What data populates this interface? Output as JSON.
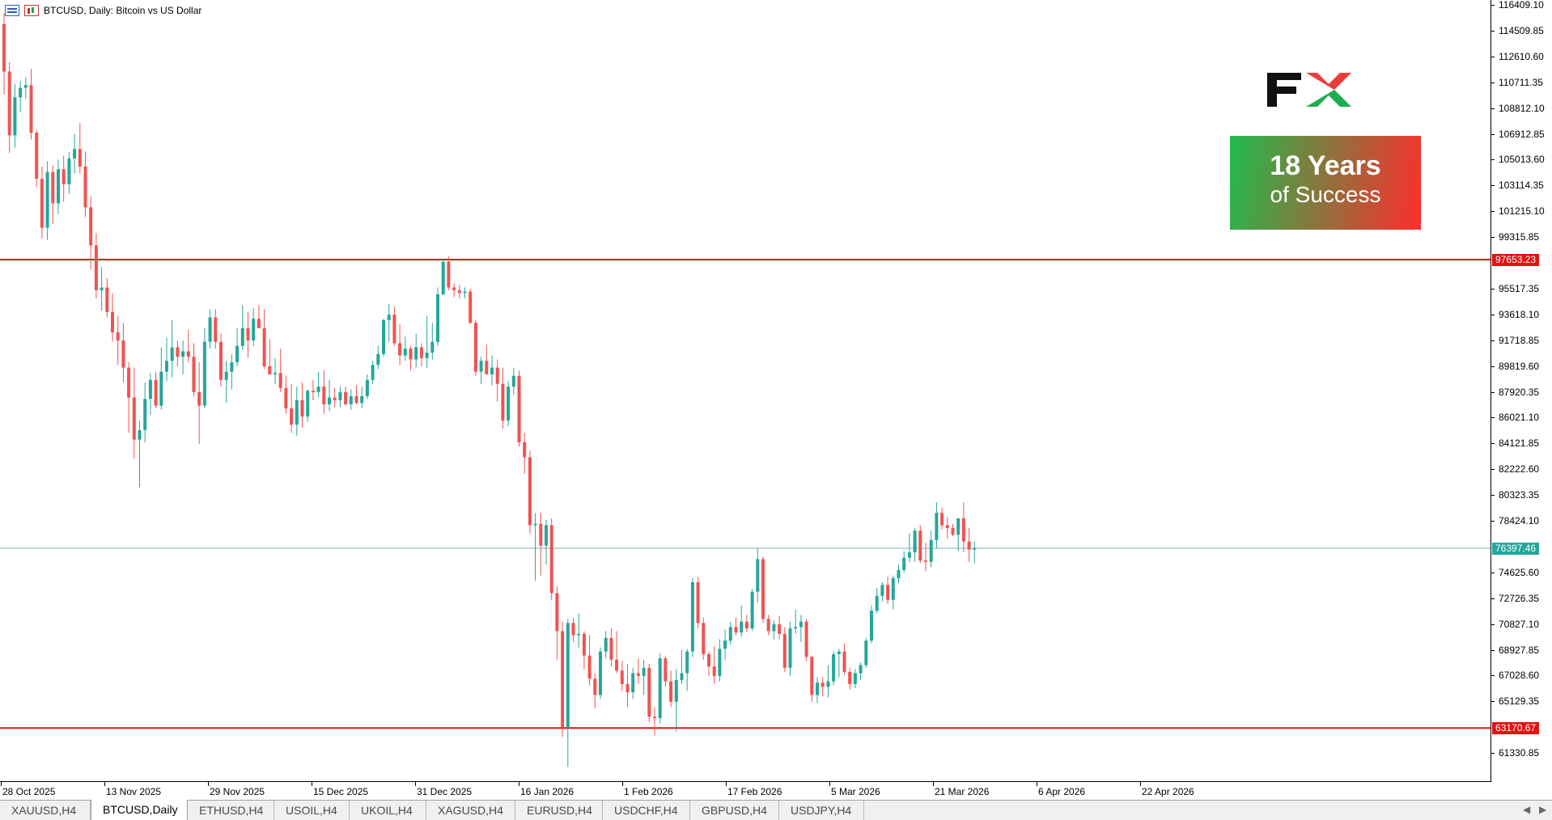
{
  "header": {
    "symbol_text": "BTCUSD, Daily:  Bitcoin vs US Dollar"
  },
  "colors": {
    "bull": "#26a69a",
    "bear": "#ef5350",
    "level_line": "#e01212",
    "current_line": "#7fb3b3",
    "current_label_bg": "#26a69a",
    "level_label_bg": "#e01212"
  },
  "price_axis": {
    "ticks": [
      "116409.10",
      "114509.85",
      "112610.60",
      "110711.35",
      "108812.10",
      "106912.85",
      "105013.60",
      "103114.35",
      "101215.10",
      "99315.85",
      "95517.35",
      "93618.10",
      "91718.85",
      "89819.60",
      "87920.35",
      "86021.10",
      "84121.85",
      "82222.60",
      "80323.35",
      "78424.10",
      "74625.60",
      "72726.35",
      "70827.10",
      "68927.85",
      "67028.60",
      "65129.35",
      "61330.85"
    ],
    "resistance_label": "97653.23",
    "current_label": "76397.46",
    "support_label": "63170.67"
  },
  "levels": {
    "resistance": 97653.23,
    "support": 63170.67,
    "current": 76397.46
  },
  "time_axis": {
    "ticks": [
      "28 Oct 2025",
      "13 Nov 2025",
      "29 Nov 2025",
      "15 Dec 2025",
      "31 Dec 2025",
      "16 Jan 2026",
      "1 Feb 2026",
      "17 Feb 2026",
      "5 Mar 2026",
      "21 Mar 2026",
      "6 Apr 2026",
      "22 Apr 2026"
    ]
  },
  "promo": {
    "logo_text": "FX",
    "line1": "18 Years",
    "line2": "of Success"
  },
  "tabs": [
    {
      "label": "XAUUSD,H4",
      "active": false
    },
    {
      "label": "BTCUSD,Daily",
      "active": true
    },
    {
      "label": "ETHUSD,H4",
      "active": false
    },
    {
      "label": "USOIL,H4",
      "active": false
    },
    {
      "label": "UKOIL,H4",
      "active": false
    },
    {
      "label": "XAGUSD,H4",
      "active": false
    },
    {
      "label": "EURUSD,H4",
      "active": false
    },
    {
      "label": "USDCHF,H4",
      "active": false
    },
    {
      "label": "GBPUSD,H4",
      "active": false
    },
    {
      "label": "USDJPY,H4",
      "active": false
    }
  ],
  "chart_data": {
    "type": "candlestick",
    "title": "BTCUSD, Daily:  Bitcoin vs US Dollar",
    "ylim": [
      59850,
      116409.1
    ],
    "x_start": "2025-10-28",
    "x_end": "2026-04-28",
    "candles": [
      [
        115000,
        115800,
        109800,
        111500
      ],
      [
        111500,
        112200,
        105500,
        106800
      ],
      [
        106800,
        110600,
        105900,
        109600
      ],
      [
        109600,
        110800,
        108500,
        110300
      ],
      [
        110300,
        111100,
        109500,
        110500
      ],
      [
        110500,
        111700,
        106500,
        107000
      ],
      [
        107000,
        107200,
        103000,
        103600
      ],
      [
        103600,
        104500,
        99200,
        100000
      ],
      [
        100000,
        104900,
        99100,
        104100
      ],
      [
        104100,
        104600,
        100300,
        101800
      ],
      [
        101800,
        105000,
        101000,
        104300
      ],
      [
        104300,
        105300,
        101900,
        103200
      ],
      [
        103200,
        105600,
        102500,
        105100
      ],
      [
        105100,
        106900,
        104000,
        105800
      ],
      [
        105800,
        107700,
        104000,
        104500
      ],
      [
        104500,
        105600,
        100800,
        101500
      ],
      [
        101500,
        102300,
        96900,
        98700
      ],
      [
        98700,
        99600,
        94800,
        95400
      ],
      [
        95400,
        97100,
        93900,
        95600
      ],
      [
        95600,
        96300,
        93400,
        93800
      ],
      [
        93800,
        95200,
        91600,
        92300
      ],
      [
        92300,
        93500,
        89900,
        91700
      ],
      [
        91700,
        93000,
        88600,
        89700
      ],
      [
        89700,
        90100,
        84900,
        87500
      ],
      [
        87500,
        89700,
        83000,
        84400
      ],
      [
        84400,
        85800,
        80900,
        85100
      ],
      [
        85100,
        88600,
        84200,
        87400
      ],
      [
        87400,
        89300,
        86200,
        88800
      ],
      [
        88800,
        89400,
        86700,
        86900
      ],
      [
        86900,
        91200,
        86600,
        89400
      ],
      [
        89400,
        91900,
        88700,
        90200
      ],
      [
        90200,
        93200,
        89000,
        91200
      ],
      [
        91200,
        91700,
        89800,
        90500
      ],
      [
        90500,
        91700,
        89200,
        90900
      ],
      [
        90900,
        92500,
        90100,
        90500
      ],
      [
        90500,
        91500,
        87600,
        87900
      ],
      [
        87900,
        90100,
        84100,
        86900
      ],
      [
        86900,
        92600,
        86700,
        91600
      ],
      [
        91600,
        94000,
        91100,
        93400
      ],
      [
        93400,
        94000,
        91100,
        91600
      ],
      [
        91600,
        92200,
        88300,
        88800
      ],
      [
        88800,
        90200,
        87100,
        89400
      ],
      [
        89400,
        90700,
        88100,
        90100
      ],
      [
        90100,
        92600,
        89800,
        91300
      ],
      [
        91300,
        94300,
        91000,
        92600
      ],
      [
        92600,
        93800,
        90400,
        91700
      ],
      [
        91700,
        94100,
        91300,
        93300
      ],
      [
        93300,
        94300,
        92800,
        92600
      ],
      [
        92600,
        94000,
        89600,
        89800
      ],
      [
        89800,
        91800,
        89200,
        89200
      ],
      [
        89200,
        90400,
        88500,
        89300
      ],
      [
        89300,
        91100,
        87900,
        88200
      ],
      [
        88200,
        89100,
        86300,
        86700
      ],
      [
        86700,
        88500,
        84900,
        85500
      ],
      [
        85500,
        88300,
        84700,
        87300
      ],
      [
        87300,
        88600,
        85300,
        86100
      ],
      [
        86100,
        88100,
        85700,
        88000
      ],
      [
        88000,
        88800,
        87300,
        87900
      ],
      [
        87900,
        89400,
        87500,
        88300
      ],
      [
        88300,
        89500,
        86300,
        87000
      ],
      [
        87000,
        88800,
        86500,
        87500
      ],
      [
        87500,
        88200,
        86800,
        87300
      ],
      [
        87300,
        88300,
        86800,
        87900
      ],
      [
        87900,
        88300,
        86900,
        87000
      ],
      [
        87000,
        88100,
        86600,
        87600
      ],
      [
        87600,
        88400,
        87000,
        87100
      ],
      [
        87100,
        88300,
        86700,
        87600
      ],
      [
        87600,
        89200,
        87400,
        88800
      ],
      [
        88800,
        90200,
        88500,
        89900
      ],
      [
        89900,
        91300,
        89600,
        90700
      ],
      [
        90700,
        93300,
        90500,
        93200
      ],
      [
        93200,
        94400,
        91600,
        93600
      ],
      [
        93600,
        94200,
        91300,
        91500
      ],
      [
        91500,
        92900,
        89900,
        90600
      ],
      [
        90600,
        92000,
        90200,
        91100
      ],
      [
        91100,
        91300,
        89500,
        90300
      ],
      [
        90300,
        92200,
        89700,
        91200
      ],
      [
        91200,
        91500,
        89800,
        90400
      ],
      [
        90400,
        93500,
        89700,
        90800
      ],
      [
        90800,
        93000,
        90300,
        91600
      ],
      [
        91600,
        95600,
        91300,
        95100
      ],
      [
        95100,
        97700,
        95000,
        97500
      ],
      [
        97500,
        97900,
        95400,
        95600
      ],
      [
        95600,
        95900,
        94900,
        95400
      ],
      [
        95400,
        95800,
        94800,
        95200
      ],
      [
        95200,
        95600,
        94800,
        95300
      ],
      [
        95300,
        95500,
        92900,
        93000
      ],
      [
        93000,
        93200,
        89100,
        89400
      ],
      [
        89400,
        90500,
        88500,
        90200
      ],
      [
        90200,
        91400,
        89200,
        89200
      ],
      [
        89200,
        90600,
        88400,
        89700
      ],
      [
        89700,
        90300,
        87200,
        88500
      ],
      [
        88500,
        89700,
        85200,
        85800
      ],
      [
        85800,
        88700,
        85400,
        88300
      ],
      [
        88300,
        89700,
        87700,
        89100
      ],
      [
        89100,
        89500,
        83900,
        84200
      ],
      [
        84200,
        84900,
        81900,
        83100
      ],
      [
        83100,
        83600,
        77500,
        78100
      ],
      [
        78100,
        79000,
        74000,
        78200
      ],
      [
        78200,
        79000,
        74400,
        76600
      ],
      [
        76600,
        78500,
        75200,
        78100
      ],
      [
        78100,
        78600,
        72600,
        73100
      ],
      [
        73100,
        73600,
        68200,
        70300
      ],
      [
        70300,
        71000,
        62500,
        63200
      ],
      [
        63200,
        71200,
        60300,
        70900
      ],
      [
        70900,
        71300,
        69500,
        70000
      ],
      [
        70000,
        71600,
        69100,
        70100
      ],
      [
        70100,
        70300,
        67500,
        68500
      ],
      [
        68500,
        70000,
        66300,
        66800
      ],
      [
        66800,
        67200,
        64600,
        65600
      ],
      [
        65600,
        69100,
        65300,
        68800
      ],
      [
        68800,
        70300,
        68300,
        69800
      ],
      [
        69800,
        70500,
        67700,
        68200
      ],
      [
        68200,
        70300,
        67200,
        67400
      ],
      [
        67400,
        68100,
        65900,
        66400
      ],
      [
        66400,
        67900,
        64700,
        65800
      ],
      [
        65800,
        67600,
        65300,
        67200
      ],
      [
        67200,
        68300,
        66400,
        67000
      ],
      [
        67000,
        68200,
        65600,
        67600
      ],
      [
        67600,
        67900,
        63600,
        64000
      ],
      [
        64000,
        64700,
        62600,
        63900
      ],
      [
        63900,
        68700,
        63500,
        68300
      ],
      [
        68300,
        68500,
        66200,
        66600
      ],
      [
        66600,
        67400,
        64700,
        65100
      ],
      [
        65100,
        67500,
        62900,
        66700
      ],
      [
        66700,
        68900,
        66400,
        67200
      ],
      [
        67200,
        69000,
        65900,
        68800
      ],
      [
        68800,
        74200,
        68400,
        73900
      ],
      [
        73900,
        74300,
        70500,
        70900
      ],
      [
        70900,
        71300,
        68200,
        68600
      ],
      [
        68600,
        68800,
        67000,
        67700
      ],
      [
        67700,
        69200,
        66400,
        67000
      ],
      [
        67000,
        69700,
        66600,
        69000
      ],
      [
        69000,
        70400,
        68200,
        69600
      ],
      [
        69600,
        71000,
        69300,
        70600
      ],
      [
        70600,
        71300,
        70000,
        70200
      ],
      [
        70200,
        72200,
        69900,
        71000
      ],
      [
        71000,
        71500,
        70200,
        70500
      ],
      [
        70500,
        73400,
        70300,
        73200
      ],
      [
        73200,
        76400,
        72400,
        75600
      ],
      [
        75600,
        75800,
        70900,
        71200
      ],
      [
        71200,
        71500,
        70000,
        70300
      ],
      [
        70300,
        71100,
        69700,
        70800
      ],
      [
        70800,
        71400,
        69700,
        70100
      ],
      [
        70100,
        70600,
        67300,
        67600
      ],
      [
        67600,
        71000,
        67000,
        70500
      ],
      [
        70500,
        71900,
        70100,
        70600
      ],
      [
        70600,
        71500,
        69500,
        71000
      ],
      [
        71000,
        71200,
        68100,
        68400
      ],
      [
        68400,
        68500,
        65100,
        65600
      ],
      [
        65600,
        66900,
        65000,
        66500
      ],
      [
        66500,
        66900,
        65500,
        66200
      ],
      [
        66200,
        67800,
        65400,
        66600
      ],
      [
        66600,
        68800,
        66300,
        68600
      ],
      [
        68600,
        69000,
        66900,
        68800
      ],
      [
        68800,
        69400,
        67100,
        67300
      ],
      [
        67300,
        67600,
        66000,
        66400
      ],
      [
        66400,
        67500,
        66100,
        67200
      ],
      [
        67200,
        68000,
        66700,
        67800
      ],
      [
        67800,
        69800,
        67600,
        69600
      ],
      [
        69600,
        72200,
        69400,
        71800
      ],
      [
        71800,
        73500,
        71600,
        72900
      ],
      [
        72900,
        73900,
        72500,
        73700
      ],
      [
        73700,
        74300,
        72300,
        72600
      ],
      [
        72600,
        74400,
        71900,
        74200
      ],
      [
        74200,
        75200,
        73800,
        74800
      ],
      [
        74800,
        76200,
        74600,
        75700
      ],
      [
        75700,
        77500,
        75400,
        76100
      ],
      [
        76100,
        77900,
        75400,
        77700
      ],
      [
        77700,
        78100,
        75300,
        75500
      ],
      [
        75500,
        76800,
        74700,
        75400
      ],
      [
        75400,
        77700,
        75000,
        77000
      ],
      [
        77000,
        79800,
        76400,
        79000
      ],
      [
        79000,
        79400,
        77800,
        78100
      ],
      [
        78100,
        78700,
        77100,
        77900
      ],
      [
        77900,
        78200,
        77300,
        77400
      ],
      [
        77400,
        78600,
        76200,
        78600
      ],
      [
        78600,
        79800,
        76100,
        76900
      ],
      [
        76900,
        77900,
        75400,
        76300
      ],
      [
        76300,
        76900,
        75300,
        76400
      ]
    ]
  }
}
